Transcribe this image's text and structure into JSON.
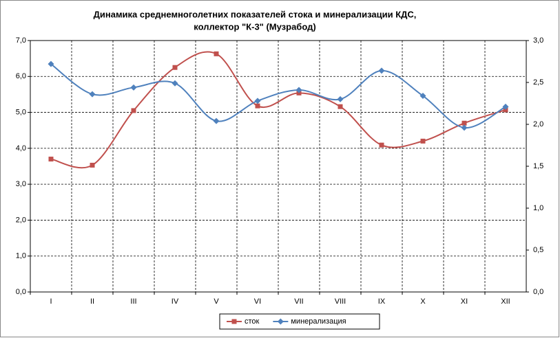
{
  "chart_data": {
    "type": "line",
    "title": [
      "Динамика среднемноголетних показателей стока и минерализации КДС,",
      "коллектор \"К-3\" (Музрабод)"
    ],
    "categories": [
      "I",
      "II",
      "III",
      "IV",
      "V",
      "VI",
      "VII",
      "VIII",
      "IX",
      "X",
      "XI",
      "XII"
    ],
    "series": [
      {
        "name": "сток",
        "color": "#c0504d",
        "marker": "square",
        "values": [
          3.7,
          3.53,
          5.05,
          6.25,
          6.63,
          5.18,
          5.54,
          5.16,
          4.09,
          4.2,
          4.7,
          5.07
        ]
      },
      {
        "name": "минерализация",
        "color": "#4f81bd",
        "marker": "diamond",
        "axis": "y2",
        "values": [
          2.72,
          2.36,
          2.44,
          2.49,
          2.04,
          2.28,
          2.41,
          2.3,
          2.64,
          2.34,
          1.96,
          2.21
        ]
      }
    ],
    "ylim": [
      0,
      7
    ],
    "yticks": [
      {
        "value": 0,
        "label": "0,0"
      },
      {
        "value": 1,
        "label": "1,0"
      },
      {
        "value": 2,
        "label": "2,0"
      },
      {
        "value": 3,
        "label": "3,0"
      },
      {
        "value": 4,
        "label": "4,0"
      },
      {
        "value": 5,
        "label": "5,0"
      },
      {
        "value": 6,
        "label": "6,0"
      },
      {
        "value": 7,
        "label": "7,0"
      }
    ],
    "y2lim": [
      0,
      3
    ],
    "y2ticks": [
      {
        "value": 0,
        "label": "0,0"
      },
      {
        "value": 0.5,
        "label": "0,5"
      },
      {
        "value": 1,
        "label": "1,0"
      },
      {
        "value": 1.5,
        "label": "1,5"
      },
      {
        "value": 2,
        "label": "2,0"
      },
      {
        "value": 2.5,
        "label": "2,5"
      },
      {
        "value": 3,
        "label": "3,0"
      }
    ],
    "grid": true,
    "smooth": true,
    "legend": "bottom"
  }
}
